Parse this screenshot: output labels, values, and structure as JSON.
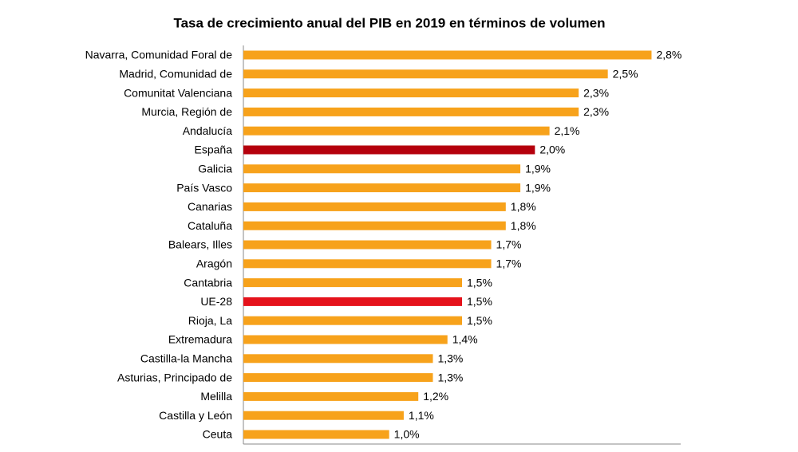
{
  "chart_data": {
    "type": "hbar",
    "title": "Tasa de crecimiento anual del PIB en 2019 en términos de volumen",
    "categories": [
      "Navarra, Comunidad Foral de",
      "Madrid, Comunidad de",
      "Comunitat Valenciana",
      "Murcia, Región de",
      "Andalucía",
      "España",
      "Galicia",
      "País Vasco",
      "Canarias",
      "Cataluña",
      "Balears, Illes",
      "Aragón",
      "Cantabria",
      "UE-28",
      "Rioja, La",
      "Extremadura",
      "Castilla-la Mancha",
      "Asturias, Principado de",
      "Melilla",
      "Castilla y León",
      "Ceuta"
    ],
    "values": [
      2.8,
      2.5,
      2.3,
      2.3,
      2.1,
      2.0,
      1.9,
      1.9,
      1.8,
      1.8,
      1.7,
      1.7,
      1.5,
      1.5,
      1.5,
      1.4,
      1.3,
      1.3,
      1.2,
      1.1,
      1.0
    ],
    "value_labels": [
      "2,8%",
      "2,5%",
      "2,3%",
      "2,3%",
      "2,1%",
      "2,0%",
      "1,9%",
      "1,9%",
      "1,8%",
      "1,8%",
      "1,7%",
      "1,7%",
      "1,5%",
      "1,5%",
      "1,5%",
      "1,4%",
      "1,3%",
      "1,3%",
      "1,2%",
      "1,1%",
      "1,0%"
    ],
    "colors": [
      "#f7a21b",
      "#f7a21b",
      "#f7a21b",
      "#f7a21b",
      "#f7a21b",
      "#b5000c",
      "#f7a21b",
      "#f7a21b",
      "#f7a21b",
      "#f7a21b",
      "#f7a21b",
      "#f7a21b",
      "#f7a21b",
      "#e5121b",
      "#f7a21b",
      "#f7a21b",
      "#f7a21b",
      "#f7a21b",
      "#f7a21b",
      "#f7a21b",
      "#f7a21b"
    ],
    "xlim": [
      0,
      3
    ]
  }
}
